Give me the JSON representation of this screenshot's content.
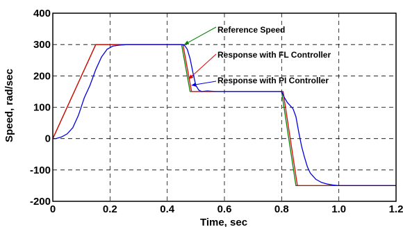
{
  "chart_data": {
    "type": "line",
    "xlabel": "Time, sec",
    "ylabel": "Speed, rad/sec",
    "xlim": [
      0,
      1.2
    ],
    "ylim": [
      -200,
      400
    ],
    "xticks": [
      "0",
      "0.2",
      "0.4",
      "0.6",
      "0.8",
      "1.0",
      "1.2"
    ],
    "yticks": [
      "-200",
      "-100",
      "0",
      "100",
      "200",
      "300",
      "400"
    ],
    "grid": true,
    "series": [
      {
        "name": "Reference Speed",
        "color": "#008000",
        "x": [
          0,
          0.15,
          0.45,
          0.48,
          0.8,
          0.85,
          1.2
        ],
        "y": [
          0,
          300,
          300,
          150,
          150,
          -150,
          -150
        ]
      },
      {
        "name": "Response with FL Controller",
        "color": "#e00000",
        "x": [
          0,
          0.15,
          0.455,
          0.485,
          0.805,
          0.855,
          1.2
        ],
        "y": [
          0,
          300,
          300,
          150,
          150,
          -150,
          -150
        ]
      },
      {
        "name": "Response with PI Controller",
        "color": "#0000e0",
        "x": [
          0,
          0.01,
          0.03,
          0.05,
          0.07,
          0.09,
          0.11,
          0.13,
          0.15,
          0.17,
          0.19,
          0.21,
          0.23,
          0.26,
          0.3,
          0.35,
          0.4,
          0.45,
          0.46,
          0.47,
          0.48,
          0.49,
          0.5,
          0.51,
          0.52,
          0.54,
          0.57,
          0.6,
          0.65,
          0.7,
          0.75,
          0.8,
          0.81,
          0.82,
          0.83,
          0.84,
          0.85,
          0.86,
          0.87,
          0.88,
          0.89,
          0.9,
          0.92,
          0.94,
          0.96,
          0.98,
          1.0,
          1.05,
          1.1,
          1.15,
          1.2
        ],
        "y": [
          0,
          0,
          5,
          15,
          35,
          75,
          130,
          170,
          220,
          260,
          285,
          295,
          298,
          300,
          300,
          300,
          300,
          300,
          298,
          285,
          255,
          210,
          170,
          155,
          150,
          152,
          150,
          150,
          150,
          150,
          150,
          150,
          130,
          115,
          105,
          95,
          70,
          20,
          -25,
          -60,
          -90,
          -110,
          -130,
          -140,
          -145,
          -148,
          -150,
          -150,
          -150,
          -150,
          -150
        ]
      }
    ],
    "annotations": [
      {
        "text": "Reference Speed",
        "color": "#008000",
        "target_x": 0.46,
        "target_y": 300
      },
      {
        "text": "Response with FL Controller",
        "color": "#e00000",
        "target_x": 0.475,
        "target_y": 190
      },
      {
        "text": "Response with PI Controller",
        "color": "#0000e0",
        "target_x": 0.485,
        "target_y": 170
      }
    ]
  }
}
